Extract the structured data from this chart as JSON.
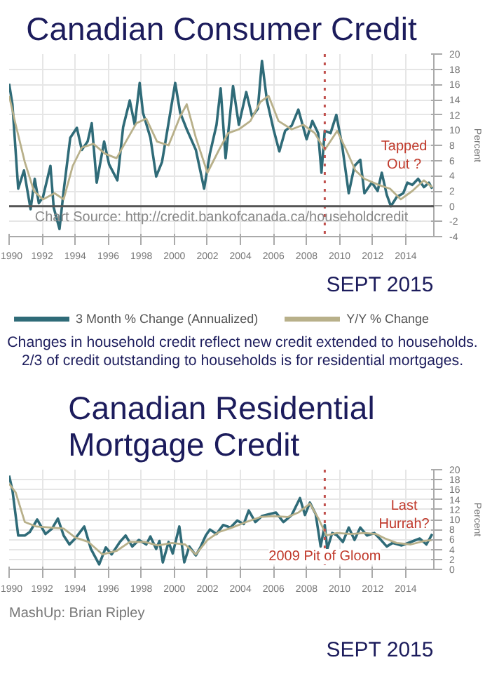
{
  "chart_data": [
    {
      "type": "line",
      "title": "Canadian Consumer Credit",
      "y2label": "Percent",
      "xlim": [
        1990,
        2015.7
      ],
      "xticks": [
        1990,
        1992,
        1994,
        1996,
        1998,
        2000,
        2002,
        2004,
        2006,
        2008,
        2010,
        2012,
        2014
      ],
      "y2lim": [
        -4,
        20
      ],
      "y2ticks": [
        -4,
        -2,
        0,
        2,
        4,
        6,
        8,
        10,
        12,
        14,
        16,
        18,
        20
      ],
      "grid": true,
      "legend": "bottom",
      "ref_lines": [
        {
          "axis": "x",
          "value": 2009.1,
          "color": "#c0504d",
          "line_style": "dotted"
        },
        {
          "axis": "y2",
          "value": 0,
          "color": "#555555",
          "line_style": "solid"
        }
      ],
      "annotations": [
        "Tapped Out ?",
        "Chart Source: http://credit.bankofcanada.ca/householdcredit",
        "SEPT 2015"
      ],
      "series": [
        {
          "name": "3 Month % Change (Annualized)",
          "color": "#2f6b78",
          "axis": "y2",
          "x": [
            1990,
            1990.2,
            1990.55,
            1990.9,
            1991.15,
            1991.3,
            1991.55,
            1991.8,
            1992.05,
            1992.5,
            1992.7,
            1993.05,
            1993.3,
            1993.7,
            1994.1,
            1994.4,
            1994.75,
            1995.0,
            1995.3,
            1995.75,
            1996.05,
            1996.55,
            1996.9,
            1997.3,
            1997.6,
            1997.9,
            1998.1,
            1998.55,
            1998.9,
            1999.25,
            1999.5,
            2000.05,
            2000.35,
            2000.75,
            2001.3,
            2001.8,
            2002.15,
            2002.55,
            2002.8,
            2003.1,
            2003.55,
            2003.9,
            2004.35,
            2004.7,
            2005.05,
            2005.3,
            2005.6,
            2006.0,
            2006.35,
            2006.7,
            2007.1,
            2007.5,
            2008.0,
            2008.35,
            2008.7,
            2008.9,
            2009.1,
            2009.45,
            2009.8,
            2010.15,
            2010.55,
            2010.9,
            2011.25,
            2011.5,
            2011.95,
            2012.3,
            2012.55,
            2012.85,
            2013.1,
            2013.45,
            2013.85,
            2014.1,
            2014.4,
            2014.75,
            2015.1,
            2015.4,
            2015.6
          ],
          "values": [
            16.1,
            13.4,
            2.3,
            4.7,
            1.5,
            -0.4,
            3.6,
            0.4,
            1.2,
            5.3,
            -0.2,
            -3.0,
            2.0,
            9.0,
            10.3,
            7.4,
            8.5,
            10.9,
            3.1,
            8.5,
            5.5,
            3.4,
            10.4,
            13.9,
            10.7,
            16.2,
            12.3,
            9.0,
            3.9,
            5.8,
            9.0,
            16.2,
            12.3,
            10.1,
            7.4,
            2.3,
            6.9,
            10.7,
            15.5,
            6.3,
            15.8,
            10.7,
            15.0,
            11.8,
            12.8,
            19.1,
            13.9,
            10.1,
            7.2,
            9.9,
            10.6,
            12.7,
            8.8,
            11.2,
            9.6,
            4.4,
            9.9,
            9.6,
            12.0,
            8.0,
            1.7,
            5.3,
            6.1,
            1.7,
            3.1,
            2.0,
            4.4,
            1.5,
            0,
            1.2,
            1.7,
            3.1,
            2.8,
            3.6,
            2.5,
            3.1,
            2.3
          ]
        },
        {
          "name": "Y/Y % Change",
          "color": "#b8b08a",
          "axis": "y2",
          "x": [
            1990,
            1990.4,
            1990.95,
            1991.5,
            1992.05,
            1992.75,
            1993.3,
            1993.85,
            1994.4,
            1995.1,
            1995.8,
            1996.5,
            1997.2,
            1997.7,
            1998.3,
            1998.95,
            1999.65,
            2000.35,
            2000.75,
            2001.3,
            2002.0,
            2002.7,
            2003.25,
            2003.9,
            2004.6,
            2005.2,
            2005.7,
            2006.3,
            2007.1,
            2007.8,
            2008.5,
            2009.1,
            2009.85,
            2010.4,
            2010.95,
            2011.5,
            2012.35,
            2013.05,
            2013.7,
            2014.4,
            2015.1,
            2015.6
          ],
          "values": [
            14.5,
            10.7,
            5.8,
            2.0,
            0.9,
            1.7,
            0.9,
            5.3,
            7.7,
            8.2,
            6.9,
            6.3,
            9.0,
            10.9,
            11.5,
            8.5,
            8.0,
            11.8,
            13.4,
            9.0,
            4.4,
            7.4,
            9.6,
            10.1,
            11.2,
            13.7,
            14.5,
            11.2,
            10.1,
            10.7,
            9.6,
            7.4,
            9.9,
            7.4,
            4.7,
            3.6,
            2.8,
            2.3,
            0.9,
            2.0,
            3.4,
            2.5
          ]
        }
      ]
    },
    {
      "type": "other",
      "annotations": [
        "Changes in household credit reflect new credit extended to households.",
        "2/3 of credit outstanding to households is for residential mortgages."
      ]
    },
    {
      "type": "line",
      "title": "Canadian Residential Mortgage Credit",
      "y2label": "Percent",
      "xlim": [
        1990,
        2015.7
      ],
      "xticks": [
        1990,
        1992,
        1994,
        1996,
        1998,
        2000,
        2002,
        2004,
        2006,
        2008,
        2010,
        2012,
        2014
      ],
      "y2lim": [
        0,
        20
      ],
      "y2ticks": [
        0,
        2,
        4,
        6,
        8,
        10,
        12,
        14,
        16,
        18,
        20
      ],
      "grid": true,
      "ref_lines": [
        {
          "axis": "x",
          "value": 2009.1,
          "color": "#c0504d",
          "line_style": "dotted",
          "label": "2009 Pit of Gloom"
        }
      ],
      "annotations": [
        "Last Hurrah?",
        "MashUp: Brian Ripley",
        "SEPT 2015"
      ],
      "series": [
        {
          "color": "#2f6b78",
          "axis": "y2",
          "x": [
            1990,
            1990.2,
            1990.55,
            1990.95,
            1991.25,
            1991.7,
            1992.2,
            1992.6,
            1992.95,
            1993.3,
            1993.65,
            1994.0,
            1994.55,
            1994.95,
            1995.45,
            1995.85,
            1996.2,
            1996.7,
            1997.05,
            1997.45,
            1997.85,
            1998.3,
            1998.55,
            1998.9,
            1999.1,
            1999.3,
            1999.65,
            1999.9,
            2000.3,
            2000.6,
            2000.9,
            2001.3,
            2001.6,
            2001.9,
            2002.15,
            2002.55,
            2002.95,
            2003.4,
            2003.8,
            2004.2,
            2004.5,
            2004.9,
            2005.3,
            2005.75,
            2006.15,
            2006.6,
            2007.1,
            2007.6,
            2007.9,
            2008.2,
            2008.55,
            2008.85,
            2009.1,
            2009.25,
            2009.55,
            2009.85,
            2010.2,
            2010.55,
            2010.9,
            2011.25,
            2011.65,
            2012.1,
            2012.5,
            2012.85,
            2013.2,
            2013.75,
            2014.3,
            2014.85,
            2015.25,
            2015.6
          ],
          "values": [
            18.8,
            15.9,
            6.8,
            6.8,
            7.5,
            10.0,
            7.1,
            8.2,
            10.2,
            6.8,
            5.0,
            6.2,
            8.6,
            4.1,
            1.0,
            4.4,
            3.0,
            5.5,
            6.8,
            4.6,
            5.9,
            5.0,
            6.6,
            4.1,
            5.7,
            1.4,
            5.5,
            3.2,
            8.6,
            1.4,
            4.6,
            2.8,
            4.6,
            6.8,
            8.0,
            7.1,
            8.9,
            8.4,
            9.8,
            9.1,
            11.8,
            9.5,
            10.7,
            11.1,
            11.4,
            9.5,
            10.9,
            14.3,
            10.9,
            13.4,
            11.1,
            4.6,
            8.9,
            4.1,
            7.3,
            6.8,
            5.5,
            8.4,
            5.9,
            8.4,
            6.8,
            7.3,
            5.9,
            4.6,
            5.3,
            4.8,
            5.5,
            6.2,
            5.0,
            7.1
          ]
        },
        {
          "color": "#b8b08a",
          "axis": "y2",
          "x": [
            1990,
            1990.4,
            1990.95,
            1991.65,
            1992.5,
            1993.3,
            1994.0,
            1994.8,
            1995.65,
            1996.5,
            1997.3,
            1998.2,
            1999.0,
            1999.85,
            2000.65,
            2001.3,
            2002.0,
            2002.7,
            2003.5,
            2004.35,
            2005.2,
            2006.0,
            2006.85,
            2007.5,
            2008.2,
            2008.75,
            2009.2,
            2009.85,
            2010.7,
            2011.5,
            2012.2,
            2012.75,
            2013.45,
            2014.3,
            2015.1,
            2015.6
          ],
          "values": [
            17.2,
            15.4,
            9.5,
            8.6,
            8.4,
            8.2,
            6.4,
            5.5,
            3.0,
            3.7,
            5.5,
            5.5,
            4.8,
            5.3,
            5.0,
            3.0,
            5.9,
            7.5,
            8.4,
            9.5,
            10.5,
            10.7,
            10.5,
            11.4,
            13.2,
            10.0,
            6.8,
            7.3,
            7.1,
            7.3,
            7.1,
            6.2,
            5.3,
            5.0,
            5.7,
            5.9
          ]
        }
      ]
    }
  ]
}
